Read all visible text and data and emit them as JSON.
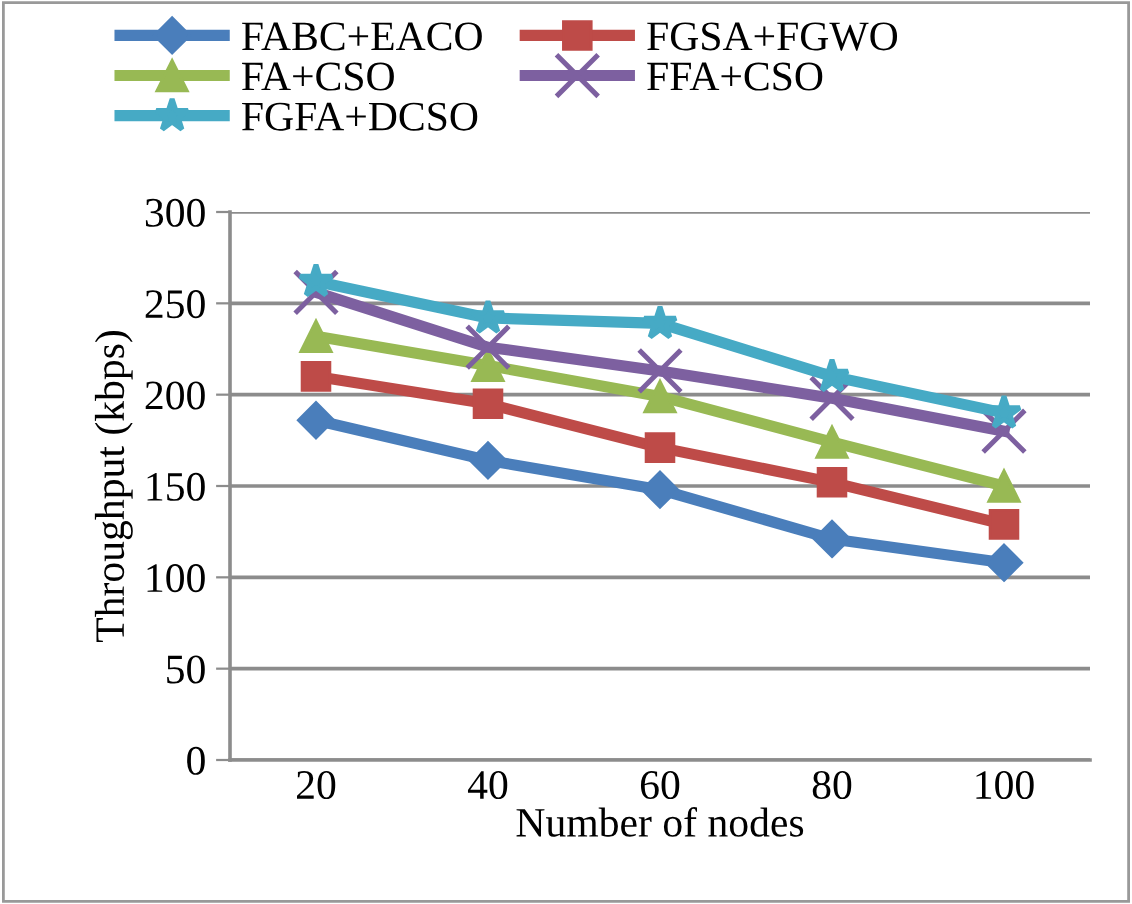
{
  "chart_data": {
    "type": "line",
    "xlabel": "Number of nodes",
    "ylabel": "Throughput (kbps)",
    "categories": [
      "20",
      "40",
      "60",
      "80",
      "100"
    ],
    "series": [
      {
        "name": "FABC+EACO",
        "color": "#4a7ebb",
        "marker": "diamond",
        "values": [
          186,
          164,
          148,
          121,
          108
        ]
      },
      {
        "name": "FGSA+FGWO",
        "color": "#be4b48",
        "marker": "square",
        "values": [
          210,
          195,
          171,
          152,
          129
        ]
      },
      {
        "name": "FA+CSO",
        "color": "#98b954",
        "marker": "triangle",
        "values": [
          232,
          216,
          199,
          174,
          150
        ]
      },
      {
        "name": "FFA+CSO",
        "color": "#7d60a0",
        "marker": "cross",
        "values": [
          256,
          226,
          213,
          198,
          180
        ]
      },
      {
        "name": "FGFA+DCSO",
        "color": "#46aac5",
        "marker": "star",
        "values": [
          262,
          242,
          239,
          210,
          190
        ]
      }
    ],
    "ylim": [
      0,
      300
    ],
    "yticks": [
      0,
      50,
      100,
      150,
      200,
      250,
      300
    ],
    "grid": "y",
    "legend": "top",
    "line_style": "solid"
  }
}
